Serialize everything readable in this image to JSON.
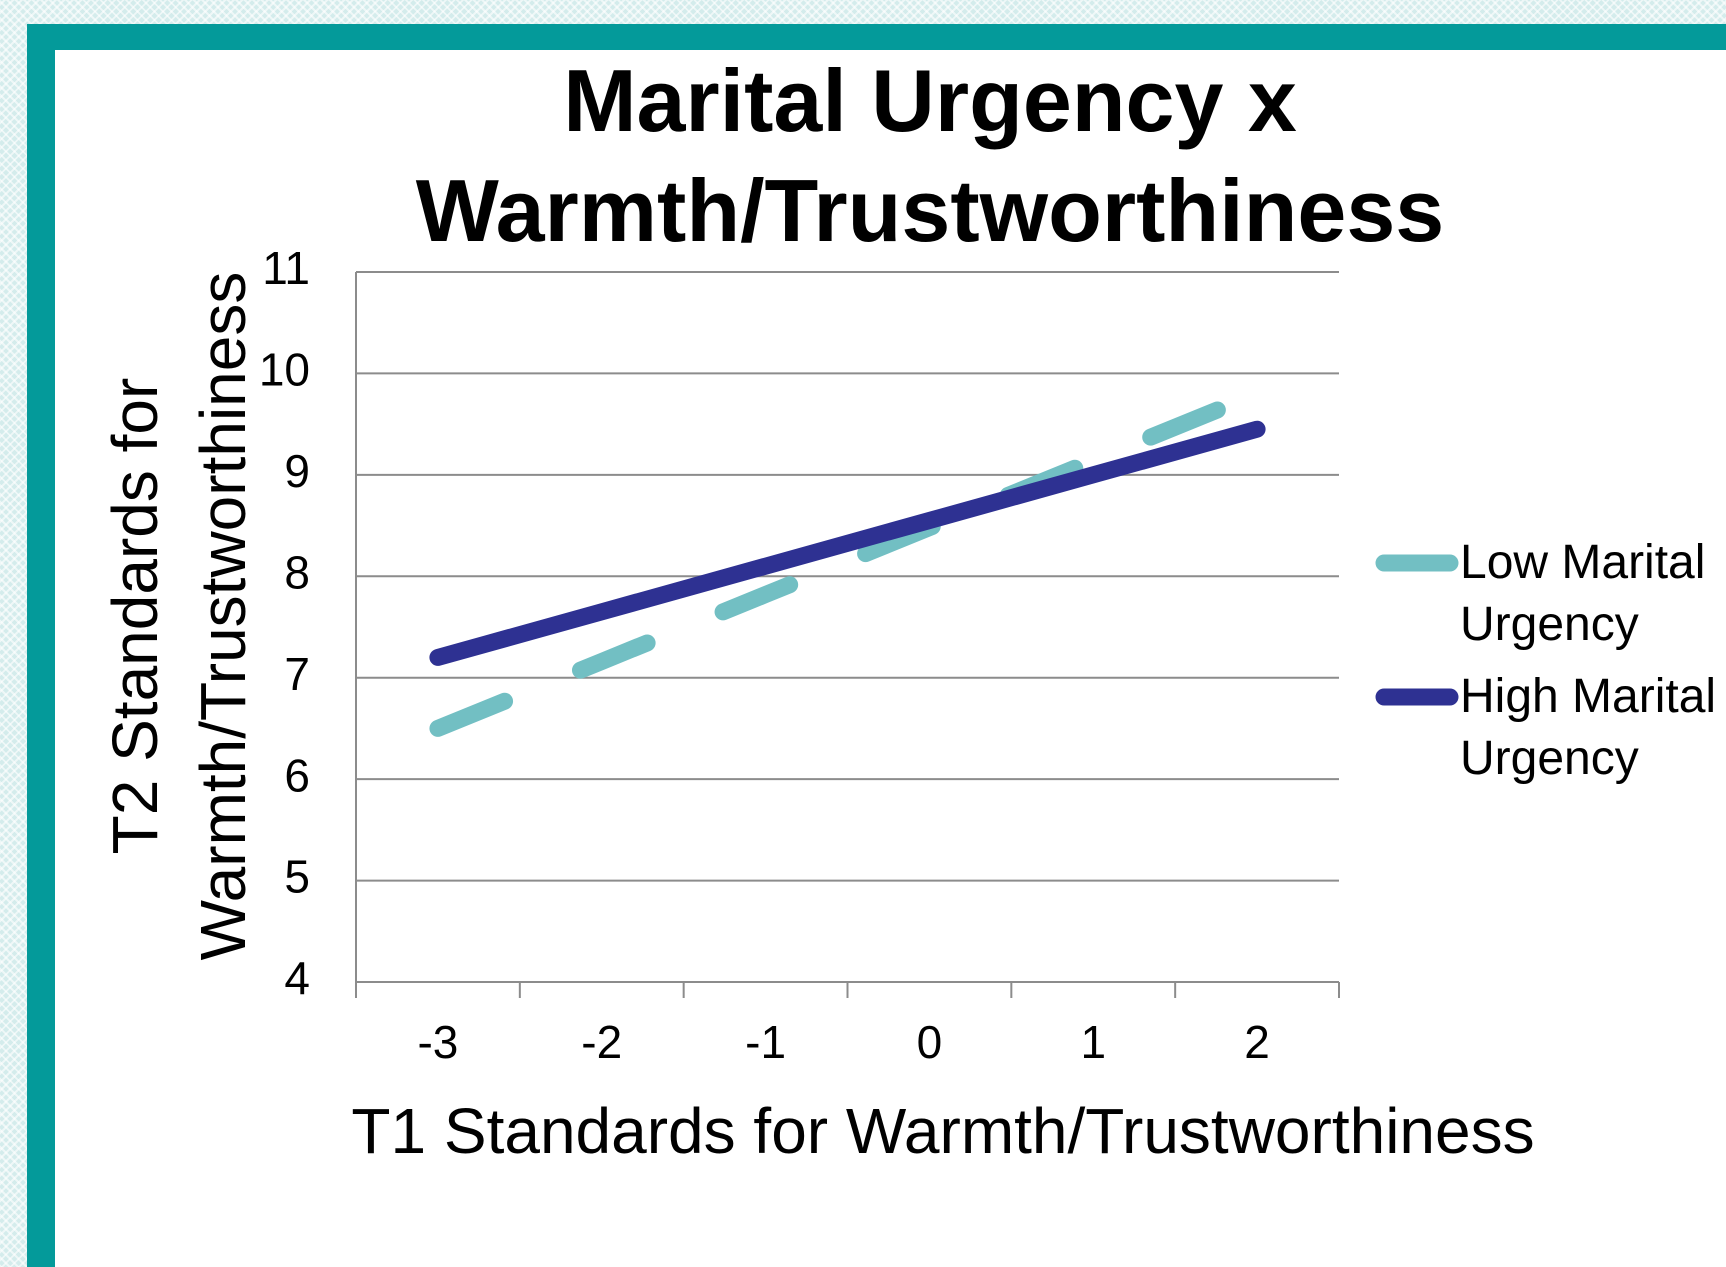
{
  "chart_data": {
    "type": "line",
    "title": "Marital Urgency x Warmth/Trustworthiness",
    "x_label": "T1 Standards for Warmth/Trustworthiness",
    "y_label": "T2 Standards for Warmth/Trustworthiness",
    "categories": [
      "-3",
      "-2",
      "-1",
      "0",
      "1",
      "2"
    ],
    "series": [
      {
        "name": "Low Marital Urgency",
        "color": "#72bfc3",
        "dashed": true,
        "values": [
          6.5,
          7.16,
          7.82,
          8.48,
          9.14,
          9.8
        ]
      },
      {
        "name": "High Marital Urgency",
        "color": "#2e3192",
        "dashed": false,
        "values": [
          7.2,
          7.65,
          8.1,
          8.55,
          9.0,
          9.45
        ]
      }
    ],
    "ylim": [
      4,
      11
    ],
    "yticks": [
      4,
      5,
      6,
      7,
      8,
      9,
      10,
      11
    ],
    "grid": true,
    "legend": "right"
  }
}
